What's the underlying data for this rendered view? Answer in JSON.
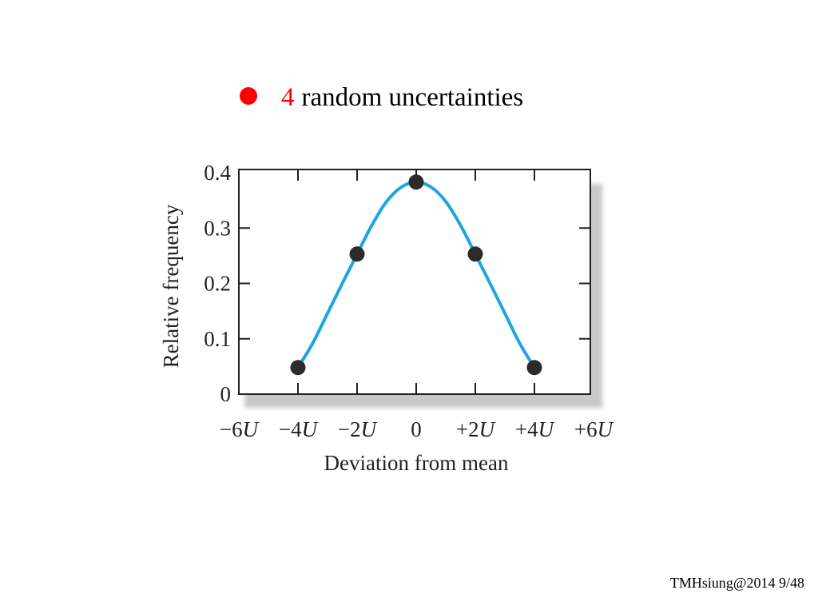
{
  "heading": {
    "number": "4",
    "text": "random uncertainties"
  },
  "footer": {
    "text": "TMHsiung@2014 9/48"
  },
  "colors": {
    "bullet": "#ff0000",
    "curve": "#1aa7e0",
    "points": "#2b2b2b",
    "frame": "#231f20",
    "shadow": "#c8c8c8"
  },
  "chart_data": {
    "type": "line",
    "xlabel": "Deviation from mean",
    "ylabel": "Relative frequency",
    "xlim": [
      -6,
      6
    ],
    "ylim": [
      0,
      0.4
    ],
    "grid": false,
    "x_ticks": [
      {
        "value": -6,
        "label": "−6",
        "unit": "U"
      },
      {
        "value": -4,
        "label": "−4",
        "unit": "U"
      },
      {
        "value": -2,
        "label": "−2",
        "unit": "U"
      },
      {
        "value": 0,
        "label": "0",
        "unit": ""
      },
      {
        "value": 2,
        "label": "+2",
        "unit": "U"
      },
      {
        "value": 4,
        "label": "+4",
        "unit": "U"
      },
      {
        "value": 6,
        "label": "+6",
        "unit": "U"
      }
    ],
    "y_ticks": [
      {
        "value": 0,
        "label": "0"
      },
      {
        "value": 0.1,
        "label": "0.1"
      },
      {
        "value": 0.2,
        "label": "0.2"
      },
      {
        "value": 0.3,
        "label": "0.3"
      },
      {
        "value": 0.4,
        "label": "0.4"
      }
    ],
    "points": [
      {
        "x": -4,
        "y": 0.048
      },
      {
        "x": -2,
        "y": 0.253
      },
      {
        "x": 0,
        "y": 0.383
      },
      {
        "x": 2,
        "y": 0.253
      },
      {
        "x": 4,
        "y": 0.048
      }
    ],
    "curve": {
      "x_range": [
        -4,
        4
      ],
      "y_values_at_x": [
        [
          -4,
          0.048
        ],
        [
          -3.5,
          0.092
        ],
        [
          -3,
          0.146
        ],
        [
          -2.5,
          0.2
        ],
        [
          -2,
          0.253
        ],
        [
          -1.5,
          0.305
        ],
        [
          -1,
          0.348
        ],
        [
          -0.5,
          0.374
        ],
        [
          0,
          0.383
        ],
        [
          0.5,
          0.374
        ],
        [
          1,
          0.348
        ],
        [
          1.5,
          0.305
        ],
        [
          2,
          0.253
        ],
        [
          2.5,
          0.2
        ],
        [
          3,
          0.146
        ],
        [
          3.5,
          0.092
        ],
        [
          4,
          0.048
        ]
      ]
    }
  }
}
